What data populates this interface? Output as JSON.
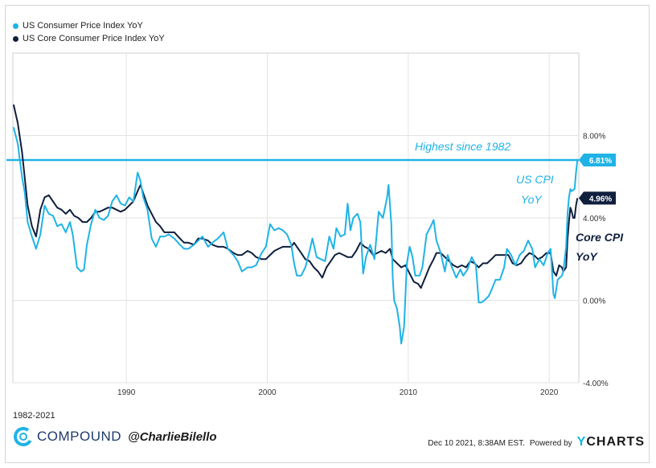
{
  "chart_data": {
    "type": "line",
    "series": [
      {
        "name": "US Consumer Price Index YoY",
        "color": "#1fb3e6",
        "points": [
          [
            1982.0,
            8.4
          ],
          [
            1982.3,
            7.6
          ],
          [
            1982.6,
            6.0
          ],
          [
            1982.8,
            5.2
          ],
          [
            1983.0,
            3.8
          ],
          [
            1983.3,
            3.1
          ],
          [
            1983.6,
            2.5
          ],
          [
            1983.9,
            3.2
          ],
          [
            1984.2,
            4.6
          ],
          [
            1984.5,
            4.2
          ],
          [
            1984.8,
            4.1
          ],
          [
            1985.1,
            3.6
          ],
          [
            1985.4,
            3.7
          ],
          [
            1985.7,
            3.3
          ],
          [
            1986.0,
            3.8
          ],
          [
            1986.2,
            3.2
          ],
          [
            1986.5,
            1.6
          ],
          [
            1986.8,
            1.4
          ],
          [
            1987.0,
            1.5
          ],
          [
            1987.2,
            2.7
          ],
          [
            1987.5,
            3.7
          ],
          [
            1987.8,
            4.4
          ],
          [
            1988.1,
            4.0
          ],
          [
            1988.4,
            3.9
          ],
          [
            1988.7,
            4.1
          ],
          [
            1989.0,
            4.8
          ],
          [
            1989.3,
            5.1
          ],
          [
            1989.6,
            4.7
          ],
          [
            1989.9,
            4.6
          ],
          [
            1990.2,
            5.0
          ],
          [
            1990.5,
            4.8
          ],
          [
            1990.8,
            6.2
          ],
          [
            1991.0,
            5.8
          ],
          [
            1991.2,
            5.0
          ],
          [
            1991.5,
            4.4
          ],
          [
            1991.8,
            3.0
          ],
          [
            1992.1,
            2.6
          ],
          [
            1992.4,
            3.1
          ],
          [
            1992.7,
            3.1
          ],
          [
            1993.0,
            3.2
          ],
          [
            1993.4,
            3.0
          ],
          [
            1993.8,
            2.7
          ],
          [
            1994.1,
            2.5
          ],
          [
            1994.4,
            2.5
          ],
          [
            1994.8,
            2.7
          ],
          [
            1995.1,
            2.9
          ],
          [
            1995.4,
            3.1
          ],
          [
            1995.8,
            2.6
          ],
          [
            1996.1,
            2.8
          ],
          [
            1996.5,
            3.0
          ],
          [
            1996.9,
            3.3
          ],
          [
            1997.2,
            2.5
          ],
          [
            1997.6,
            2.2
          ],
          [
            1997.9,
            1.9
          ],
          [
            1998.2,
            1.4
          ],
          [
            1998.6,
            1.6
          ],
          [
            1998.9,
            1.6
          ],
          [
            1999.2,
            1.7
          ],
          [
            1999.6,
            2.3
          ],
          [
            1999.9,
            2.6
          ],
          [
            2000.2,
            3.7
          ],
          [
            2000.5,
            3.4
          ],
          [
            2000.8,
            3.5
          ],
          [
            2001.1,
            3.4
          ],
          [
            2001.4,
            3.2
          ],
          [
            2001.7,
            2.7
          ],
          [
            2001.9,
            1.8
          ],
          [
            2002.1,
            1.2
          ],
          [
            2002.4,
            1.2
          ],
          [
            2002.7,
            1.6
          ],
          [
            2003.0,
            2.4
          ],
          [
            2003.2,
            3.0
          ],
          [
            2003.5,
            2.1
          ],
          [
            2003.8,
            2.0
          ],
          [
            2004.1,
            1.9
          ],
          [
            2004.4,
            3.1
          ],
          [
            2004.7,
            2.5
          ],
          [
            2004.9,
            3.5
          ],
          [
            2005.2,
            3.1
          ],
          [
            2005.5,
            3.2
          ],
          [
            2005.7,
            4.7
          ],
          [
            2005.9,
            3.4
          ],
          [
            2006.1,
            4.0
          ],
          [
            2006.4,
            4.2
          ],
          [
            2006.6,
            3.8
          ],
          [
            2006.8,
            1.3
          ],
          [
            2007.0,
            2.1
          ],
          [
            2007.3,
            2.7
          ],
          [
            2007.6,
            2.0
          ],
          [
            2007.9,
            4.3
          ],
          [
            2008.2,
            4.0
          ],
          [
            2008.5,
            5.0
          ],
          [
            2008.6,
            5.6
          ],
          [
            2008.8,
            3.7
          ],
          [
            2008.9,
            1.1
          ],
          [
            2009.0,
            0.0
          ],
          [
            2009.2,
            -0.4
          ],
          [
            2009.4,
            -1.3
          ],
          [
            2009.5,
            -2.1
          ],
          [
            2009.7,
            -1.3
          ],
          [
            2009.9,
            1.8
          ],
          [
            2010.1,
            2.6
          ],
          [
            2010.3,
            2.1
          ],
          [
            2010.5,
            1.2
          ],
          [
            2010.8,
            1.2
          ],
          [
            2011.0,
            1.6
          ],
          [
            2011.3,
            3.2
          ],
          [
            2011.6,
            3.6
          ],
          [
            2011.8,
            3.9
          ],
          [
            2012.0,
            2.9
          ],
          [
            2012.3,
            2.3
          ],
          [
            2012.6,
            1.4
          ],
          [
            2012.8,
            2.2
          ],
          [
            2013.1,
            1.6
          ],
          [
            2013.4,
            1.1
          ],
          [
            2013.7,
            1.5
          ],
          [
            2013.9,
            1.2
          ],
          [
            2014.2,
            1.5
          ],
          [
            2014.5,
            2.1
          ],
          [
            2014.8,
            1.7
          ],
          [
            2015.0,
            -0.1
          ],
          [
            2015.2,
            -0.1
          ],
          [
            2015.4,
            0.0
          ],
          [
            2015.7,
            0.2
          ],
          [
            2015.9,
            0.5
          ],
          [
            2016.2,
            1.0
          ],
          [
            2016.5,
            1.0
          ],
          [
            2016.8,
            1.6
          ],
          [
            2017.0,
            2.5
          ],
          [
            2017.3,
            2.2
          ],
          [
            2017.6,
            1.7
          ],
          [
            2017.9,
            2.2
          ],
          [
            2018.2,
            2.4
          ],
          [
            2018.5,
            2.9
          ],
          [
            2018.8,
            2.5
          ],
          [
            2019.0,
            1.6
          ],
          [
            2019.3,
            2.0
          ],
          [
            2019.6,
            1.7
          ],
          [
            2019.9,
            2.3
          ],
          [
            2020.1,
            2.5
          ],
          [
            2020.3,
            0.3
          ],
          [
            2020.4,
            0.1
          ],
          [
            2020.6,
            1.0
          ],
          [
            2020.9,
            1.2
          ],
          [
            2021.0,
            1.4
          ],
          [
            2021.2,
            2.6
          ],
          [
            2021.3,
            4.2
          ],
          [
            2021.4,
            5.0
          ],
          [
            2021.5,
            5.4
          ],
          [
            2021.6,
            5.3
          ],
          [
            2021.8,
            5.4
          ],
          [
            2021.9,
            6.2
          ],
          [
            2022.0,
            6.81
          ]
        ]
      },
      {
        "name": "US Core Consumer Price Index YoY",
        "color": "#0f1f3d",
        "points": [
          [
            1982.0,
            9.5
          ],
          [
            1982.3,
            8.6
          ],
          [
            1982.6,
            7.2
          ],
          [
            1982.8,
            5.9
          ],
          [
            1983.0,
            4.6
          ],
          [
            1983.3,
            3.6
          ],
          [
            1983.6,
            3.1
          ],
          [
            1983.9,
            4.4
          ],
          [
            1984.2,
            5.0
          ],
          [
            1984.5,
            5.1
          ],
          [
            1984.8,
            4.8
          ],
          [
            1985.1,
            4.5
          ],
          [
            1985.4,
            4.4
          ],
          [
            1985.7,
            4.2
          ],
          [
            1986.0,
            4.4
          ],
          [
            1986.3,
            4.1
          ],
          [
            1986.6,
            4.0
          ],
          [
            1986.9,
            3.8
          ],
          [
            1987.2,
            3.8
          ],
          [
            1987.5,
            4.0
          ],
          [
            1987.8,
            4.3
          ],
          [
            1988.1,
            4.3
          ],
          [
            1988.4,
            4.4
          ],
          [
            1988.7,
            4.5
          ],
          [
            1989.0,
            4.5
          ],
          [
            1989.3,
            4.4
          ],
          [
            1989.6,
            4.3
          ],
          [
            1989.9,
            4.4
          ],
          [
            1990.2,
            4.6
          ],
          [
            1990.5,
            4.8
          ],
          [
            1990.8,
            5.3
          ],
          [
            1991.0,
            5.6
          ],
          [
            1991.2,
            5.2
          ],
          [
            1991.5,
            4.6
          ],
          [
            1991.8,
            4.2
          ],
          [
            1992.1,
            3.8
          ],
          [
            1992.4,
            3.6
          ],
          [
            1992.7,
            3.3
          ],
          [
            1993.0,
            3.3
          ],
          [
            1993.4,
            3.3
          ],
          [
            1993.8,
            3.0
          ],
          [
            1994.1,
            2.8
          ],
          [
            1994.4,
            2.8
          ],
          [
            1994.8,
            2.7
          ],
          [
            1995.1,
            3.0
          ],
          [
            1995.4,
            3.0
          ],
          [
            1995.8,
            2.9
          ],
          [
            1996.1,
            2.7
          ],
          [
            1996.5,
            2.6
          ],
          [
            1996.9,
            2.6
          ],
          [
            1997.2,
            2.5
          ],
          [
            1997.6,
            2.3
          ],
          [
            1997.9,
            2.2
          ],
          [
            1998.2,
            2.2
          ],
          [
            1998.6,
            2.4
          ],
          [
            1998.9,
            2.3
          ],
          [
            1999.2,
            2.1
          ],
          [
            1999.6,
            2.0
          ],
          [
            1999.9,
            2.0
          ],
          [
            2000.2,
            2.2
          ],
          [
            2000.5,
            2.4
          ],
          [
            2000.8,
            2.5
          ],
          [
            2001.1,
            2.6
          ],
          [
            2001.4,
            2.6
          ],
          [
            2001.7,
            2.6
          ],
          [
            2001.9,
            2.8
          ],
          [
            2002.1,
            2.6
          ],
          [
            2002.4,
            2.3
          ],
          [
            2002.7,
            2.0
          ],
          [
            2003.0,
            1.9
          ],
          [
            2003.3,
            1.6
          ],
          [
            2003.6,
            1.4
          ],
          [
            2003.9,
            1.1
          ],
          [
            2004.2,
            1.6
          ],
          [
            2004.5,
            1.9
          ],
          [
            2004.8,
            2.2
          ],
          [
            2005.1,
            2.3
          ],
          [
            2005.4,
            2.2
          ],
          [
            2005.7,
            2.1
          ],
          [
            2006.0,
            2.1
          ],
          [
            2006.3,
            2.4
          ],
          [
            2006.6,
            2.8
          ],
          [
            2006.9,
            2.6
          ],
          [
            2007.2,
            2.5
          ],
          [
            2007.5,
            2.2
          ],
          [
            2007.8,
            2.3
          ],
          [
            2008.1,
            2.4
          ],
          [
            2008.4,
            2.3
          ],
          [
            2008.7,
            2.5
          ],
          [
            2008.9,
            2.0
          ],
          [
            2009.2,
            1.8
          ],
          [
            2009.5,
            1.6
          ],
          [
            2009.8,
            1.7
          ],
          [
            2010.1,
            1.3
          ],
          [
            2010.4,
            0.9
          ],
          [
            2010.7,
            0.8
          ],
          [
            2010.9,
            0.6
          ],
          [
            2011.2,
            1.1
          ],
          [
            2011.5,
            1.6
          ],
          [
            2011.8,
            2.0
          ],
          [
            2012.0,
            2.3
          ],
          [
            2012.3,
            2.3
          ],
          [
            2012.6,
            2.1
          ],
          [
            2012.9,
            1.9
          ],
          [
            2013.2,
            1.7
          ],
          [
            2013.5,
            1.6
          ],
          [
            2013.8,
            1.7
          ],
          [
            2014.1,
            1.6
          ],
          [
            2014.4,
            1.9
          ],
          [
            2014.7,
            1.8
          ],
          [
            2015.0,
            1.6
          ],
          [
            2015.3,
            1.8
          ],
          [
            2015.6,
            1.8
          ],
          [
            2015.9,
            2.0
          ],
          [
            2016.2,
            2.2
          ],
          [
            2016.5,
            2.2
          ],
          [
            2016.8,
            2.2
          ],
          [
            2017.1,
            2.2
          ],
          [
            2017.4,
            1.8
          ],
          [
            2017.7,
            1.7
          ],
          [
            2018.0,
            1.8
          ],
          [
            2018.3,
            2.1
          ],
          [
            2018.6,
            2.3
          ],
          [
            2018.9,
            2.2
          ],
          [
            2019.2,
            2.0
          ],
          [
            2019.5,
            2.1
          ],
          [
            2019.8,
            2.3
          ],
          [
            2020.1,
            2.3
          ],
          [
            2020.3,
            1.4
          ],
          [
            2020.5,
            1.2
          ],
          [
            2020.7,
            1.7
          ],
          [
            2020.9,
            1.6
          ],
          [
            2021.0,
            1.4
          ],
          [
            2021.2,
            1.6
          ],
          [
            2021.3,
            3.0
          ],
          [
            2021.4,
            3.8
          ],
          [
            2021.5,
            4.5
          ],
          [
            2021.6,
            4.3
          ],
          [
            2021.7,
            4.0
          ],
          [
            2021.8,
            4.0
          ],
          [
            2021.9,
            4.6
          ],
          [
            2022.0,
            4.96
          ]
        ]
      }
    ],
    "x_ticks": [
      1990,
      2000,
      2010,
      2020
    ],
    "y_ticks": [
      {
        "value": 8,
        "label": "8.00%"
      },
      {
        "value": 4,
        "label": "4.00%"
      },
      {
        "value": 0,
        "label": "0.00%"
      },
      {
        "value": -4,
        "label": "-4.00%"
      }
    ],
    "xlim": [
      1981.95,
      2022.1
    ],
    "ylim": [
      -4,
      12
    ],
    "value_labels": [
      {
        "series": 0,
        "value": 6.81,
        "label": "6.81%",
        "bg": "#1fb3e6"
      },
      {
        "series": 1,
        "value": 4.96,
        "label": "4.96%",
        "bg": "#0f1f3d"
      }
    ],
    "reference_line": {
      "value": 6.81,
      "color": "#1fb3e6",
      "label": "Highest since 1982"
    },
    "annotations": [
      {
        "text": "US CPI",
        "color": "#1fb3e6"
      },
      {
        "text": "YoY",
        "color": "#1fb3e6"
      },
      {
        "text": "Core CPI",
        "color": "#0f1f3d"
      },
      {
        "text": "YoY",
        "color": "#0f1f3d"
      }
    ],
    "grid": "horizontal",
    "legend_position": "top-left"
  },
  "legend": [
    {
      "label": "US Consumer Price Index YoY",
      "color": "#1fb3e6"
    },
    {
      "label": "US Core Consumer Price Index YoY",
      "color": "#0f1f3d"
    }
  ],
  "footer": {
    "range": "1982-2021",
    "brand": "COMPOUND",
    "handle": "@CharlieBilello",
    "timestamp": "Dec 10 2021, 8:38AM EST.",
    "powered_by": "Powered by",
    "provider_y": "Y",
    "provider_rest": "CHARTS"
  }
}
